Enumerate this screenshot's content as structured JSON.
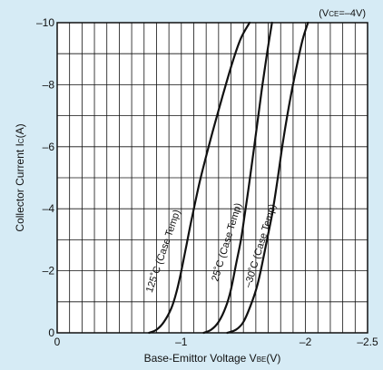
{
  "chart_data": {
    "type": "line",
    "conditions": {
      "prefix": "(V",
      "sub": "CE",
      "value": "=–4V)"
    },
    "xlabel": {
      "main": "Base-Emittor Voltage V",
      "sub": "BE",
      "unit": "(V)"
    },
    "ylabel": {
      "main": "Collector Current I",
      "sub": "C",
      "unit": "(A)"
    },
    "xlim": [
      0,
      -2.5
    ],
    "ylim": [
      0,
      -10
    ],
    "grid": true,
    "x_ticks": [
      {
        "value": 0,
        "label": "0"
      },
      {
        "value": -1,
        "label": "–1"
      },
      {
        "value": -2,
        "label": "–2"
      },
      {
        "value": -2.5,
        "label": "–2.5"
      }
    ],
    "y_ticks": [
      {
        "value": 0,
        "label": "0"
      },
      {
        "value": -2,
        "label": "–2"
      },
      {
        "value": -4,
        "label": "–4"
      },
      {
        "value": -6,
        "label": "–6"
      },
      {
        "value": -8,
        "label": "–8"
      },
      {
        "value": -10,
        "label": "–10"
      }
    ],
    "series": [
      {
        "name": "125˚C (Case Temp)",
        "x": [
          -0.74,
          -0.8,
          -0.86,
          -0.92,
          -0.96,
          -1.0,
          -1.04,
          -1.08,
          -1.15,
          -1.24,
          -1.33,
          -1.41,
          -1.48,
          -1.55
        ],
        "y": [
          0,
          -0.1,
          -0.35,
          -0.8,
          -1.3,
          -2.0,
          -2.8,
          -3.6,
          -4.9,
          -6.3,
          -7.6,
          -8.7,
          -9.5,
          -10.0
        ]
      },
      {
        "name": "25˚C (Case Temp)",
        "x": [
          -1.18,
          -1.24,
          -1.3,
          -1.36,
          -1.4,
          -1.44,
          -1.48,
          -1.51,
          -1.55,
          -1.6,
          -1.65,
          -1.69,
          -1.73
        ],
        "y": [
          0,
          -0.1,
          -0.35,
          -0.85,
          -1.4,
          -2.2,
          -3.0,
          -3.8,
          -4.9,
          -6.4,
          -7.9,
          -9.0,
          -10.0
        ]
      },
      {
        "name": "–30˚C (Case Temp)",
        "x": [
          -1.37,
          -1.44,
          -1.5,
          -1.56,
          -1.61,
          -1.65,
          -1.69,
          -1.73,
          -1.77,
          -1.82,
          -1.88,
          -1.94,
          -1.98,
          -2.02
        ],
        "y": [
          0,
          -0.1,
          -0.35,
          -0.9,
          -1.5,
          -2.2,
          -3.0,
          -3.8,
          -4.8,
          -6.2,
          -7.6,
          -8.8,
          -9.5,
          -10.0
        ]
      }
    ]
  }
}
